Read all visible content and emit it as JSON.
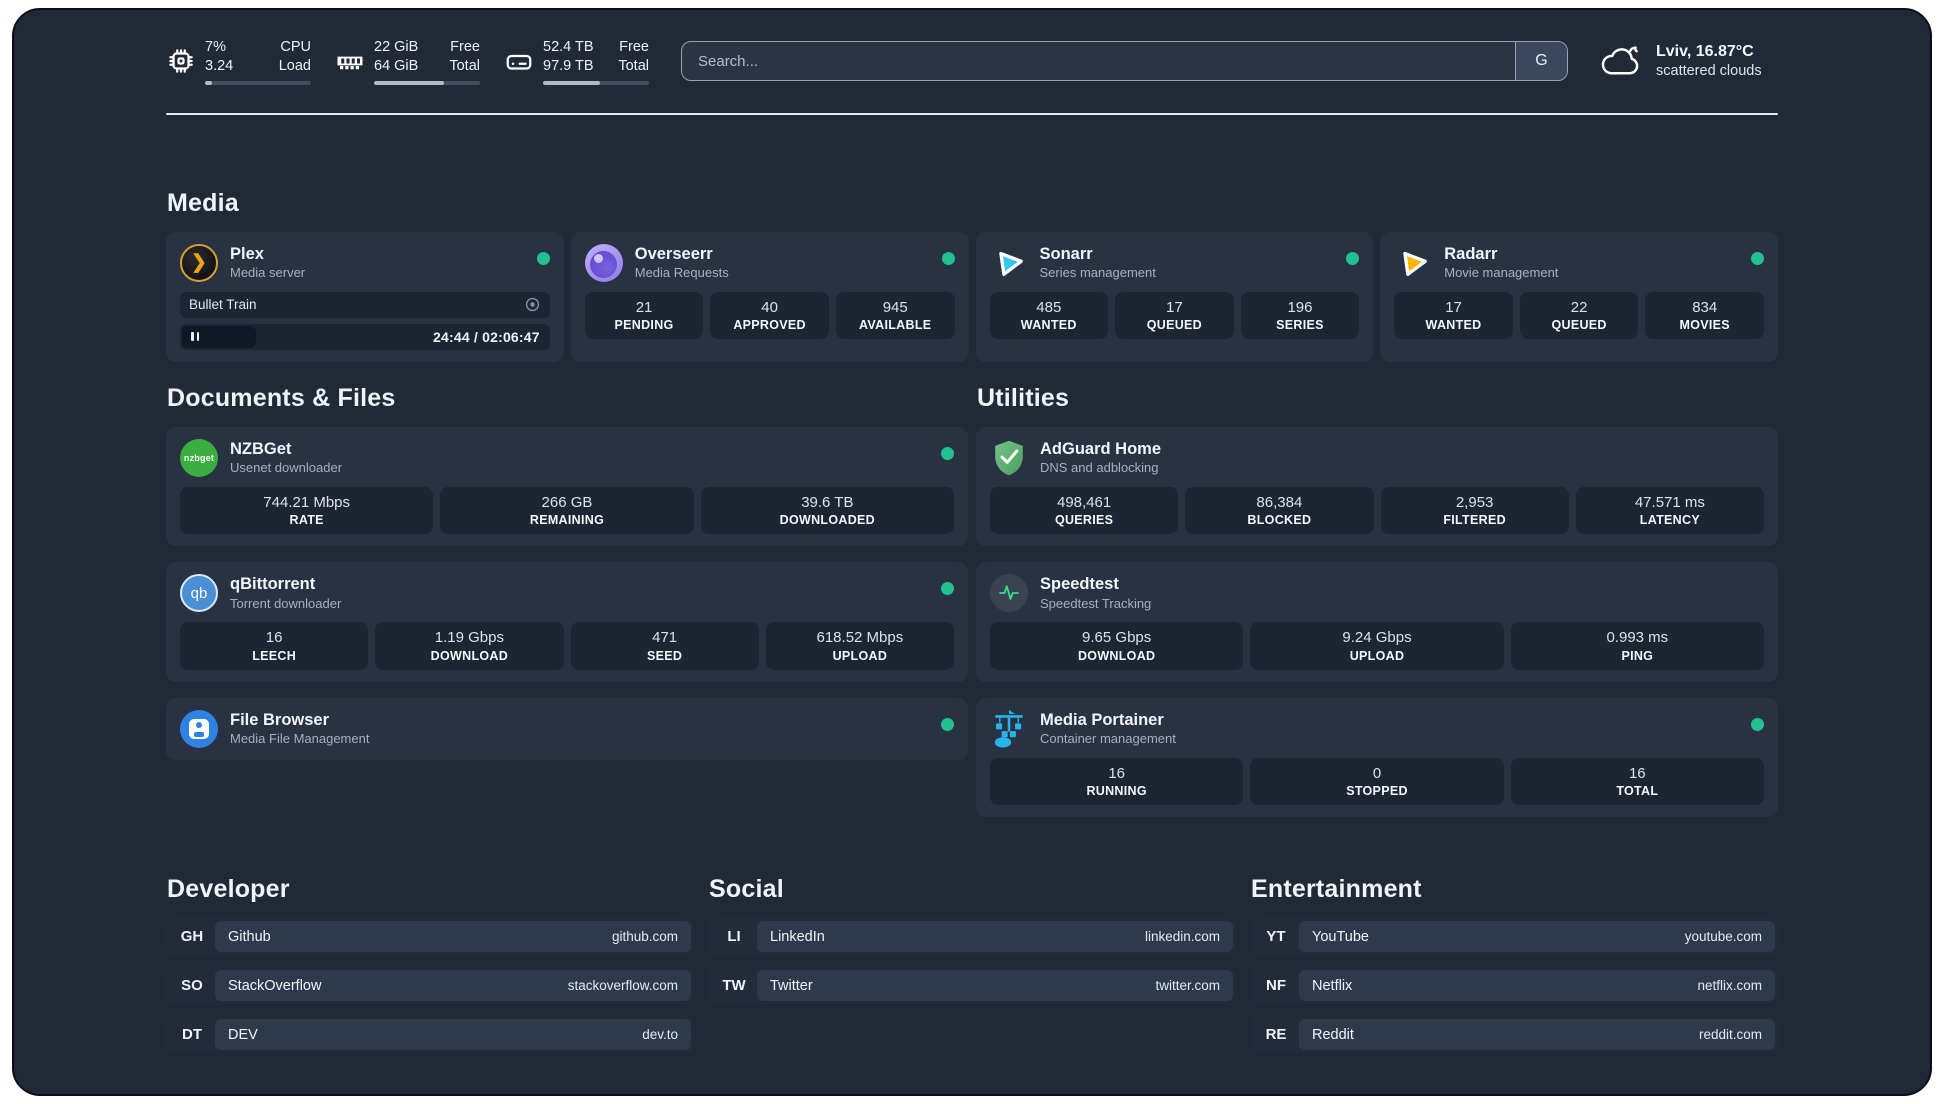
{
  "header": {
    "stats": [
      {
        "icon": "cpu",
        "value_top": "7%",
        "value_bottom": "3.24",
        "label_top": "CPU",
        "label_bottom": "Load",
        "progress": 7
      },
      {
        "icon": "memory",
        "value_top": "22 GiB",
        "value_bottom": "64 GiB",
        "label_top": "Free",
        "label_bottom": "Total",
        "progress": 66
      },
      {
        "icon": "disk",
        "value_top": "52.4 TB",
        "value_bottom": "97.9 TB",
        "label_top": "Free",
        "label_bottom": "Total",
        "progress": 54
      }
    ],
    "search": {
      "placeholder": "Search...",
      "engine_button": "G"
    },
    "weather": {
      "location_temp": "Lviv, 16.87°C",
      "condition": "scattered clouds"
    }
  },
  "sections": {
    "media": {
      "title": "Media",
      "cards": [
        {
          "name": "Plex",
          "description": "Media server",
          "online": true,
          "player": {
            "title": "Bullet Train",
            "progress": 20,
            "time": "24:44 / 02:06:47"
          }
        },
        {
          "name": "Overseerr",
          "description": "Media Requests",
          "online": true,
          "stats": [
            {
              "value": "21",
              "label": "PENDING"
            },
            {
              "value": "40",
              "label": "APPROVED"
            },
            {
              "value": "945",
              "label": "AVAILABLE"
            }
          ]
        },
        {
          "name": "Sonarr",
          "description": "Series management",
          "online": true,
          "stats": [
            {
              "value": "485",
              "label": "WANTED"
            },
            {
              "value": "17",
              "label": "QUEUED"
            },
            {
              "value": "196",
              "label": "SERIES"
            }
          ]
        },
        {
          "name": "Radarr",
          "description": "Movie management",
          "online": true,
          "stats": [
            {
              "value": "17",
              "label": "WANTED"
            },
            {
              "value": "22",
              "label": "QUEUED"
            },
            {
              "value": "834",
              "label": "MOVIES"
            }
          ]
        }
      ]
    },
    "documents": {
      "title": "Documents & Files",
      "cards": [
        {
          "name": "NZBGet",
          "description": "Usenet downloader",
          "online": true,
          "icon_text": "nzbget",
          "stats": [
            {
              "value": "744.21 Mbps",
              "label": "RATE"
            },
            {
              "value": "266 GB",
              "label": "REMAINING"
            },
            {
              "value": "39.6 TB",
              "label": "DOWNLOADED"
            }
          ]
        },
        {
          "name": "qBittorrent",
          "description": "Torrent downloader",
          "online": true,
          "icon_text": "qb",
          "stats": [
            {
              "value": "16",
              "label": "LEECH"
            },
            {
              "value": "1.19 Gbps",
              "label": "DOWNLOAD"
            },
            {
              "value": "471",
              "label": "SEED"
            },
            {
              "value": "618.52 Mbps",
              "label": "UPLOAD"
            }
          ]
        },
        {
          "name": "File Browser",
          "description": "Media File Management",
          "online": true
        }
      ]
    },
    "utilities": {
      "title": "Utilities",
      "cards": [
        {
          "name": "AdGuard Home",
          "description": "DNS and adblocking",
          "online": false,
          "stats": [
            {
              "value": "498,461",
              "label": "QUERIES"
            },
            {
              "value": "86,384",
              "label": "BLOCKED"
            },
            {
              "value": "2,953",
              "label": "FILTERED"
            },
            {
              "value": "47.571 ms",
              "label": "LATENCY"
            }
          ]
        },
        {
          "name": "Speedtest",
          "description": "Speedtest Tracking",
          "online": false,
          "stats": [
            {
              "value": "9.65 Gbps",
              "label": "DOWNLOAD"
            },
            {
              "value": "9.24 Gbps",
              "label": "UPLOAD"
            },
            {
              "value": "0.993 ms",
              "label": "PING"
            }
          ]
        },
        {
          "name": "Media Portainer",
          "description": "Container management",
          "online": true,
          "stats": [
            {
              "value": "16",
              "label": "RUNNING"
            },
            {
              "value": "0",
              "label": "STOPPED"
            },
            {
              "value": "16",
              "label": "TOTAL"
            }
          ]
        }
      ]
    },
    "developer": {
      "title": "Developer",
      "links": [
        {
          "abbr": "GH",
          "name": "Github",
          "url": "github.com"
        },
        {
          "abbr": "SO",
          "name": "StackOverflow",
          "url": "stackoverflow.com"
        },
        {
          "abbr": "DT",
          "name": "DEV",
          "url": "dev.to"
        }
      ]
    },
    "social": {
      "title": "Social",
      "links": [
        {
          "abbr": "LI",
          "name": "LinkedIn",
          "url": "linkedin.com"
        },
        {
          "abbr": "TW",
          "name": "Twitter",
          "url": "twitter.com"
        }
      ]
    },
    "entertainment": {
      "title": "Entertainment",
      "links": [
        {
          "abbr": "YT",
          "name": "YouTube",
          "url": "youtube.com"
        },
        {
          "abbr": "NF",
          "name": "Netflix",
          "url": "netflix.com"
        },
        {
          "abbr": "RE",
          "name": "Reddit",
          "url": "reddit.com"
        }
      ]
    }
  },
  "colors": {
    "status_online": "#22c08c",
    "plex_accent": "#e5a00d",
    "sonarr_accent": "#35c5f1",
    "radarr_accent": "#ffb400",
    "adguard_accent": "#5aa868",
    "portainer_accent": "#29b3ea"
  }
}
